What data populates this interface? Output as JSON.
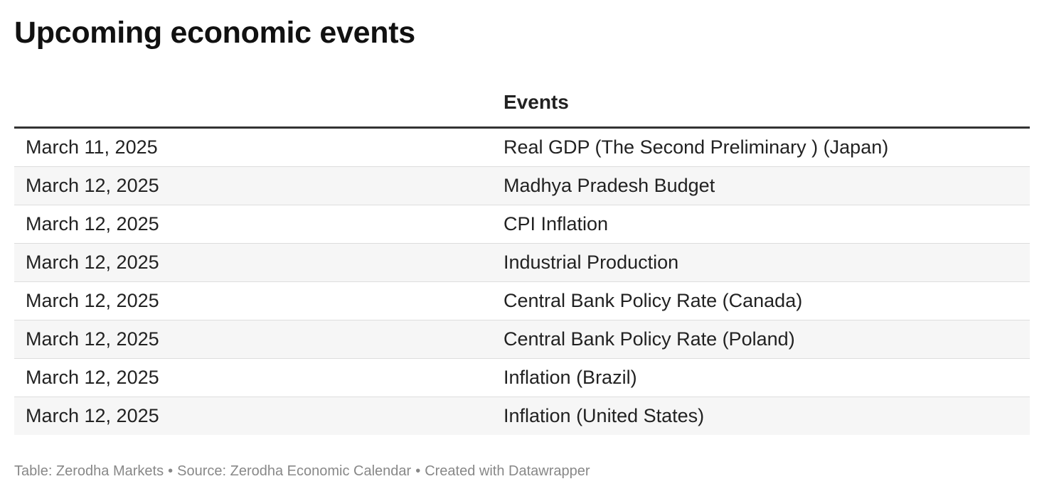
{
  "title": "Upcoming economic events",
  "chart_data": {
    "type": "table",
    "title": "Upcoming economic events",
    "columns": [
      "",
      "Events"
    ],
    "rows": [
      [
        "March 11, 2025",
        "Real GDP (The Second Preliminary ) (Japan)"
      ],
      [
        "March 12, 2025",
        "Madhya Pradesh Budget"
      ],
      [
        "March 12, 2025",
        "CPI Inflation"
      ],
      [
        "March 12, 2025",
        "Industrial Production"
      ],
      [
        "March 12, 2025",
        "Central Bank Policy Rate (Canada)"
      ],
      [
        "March 12, 2025",
        "Central Bank Policy Rate (Poland)"
      ],
      [
        "March 12, 2025",
        "Inflation (Brazil)"
      ],
      [
        "March 12, 2025",
        "Inflation (United States)"
      ]
    ]
  },
  "footer": {
    "table_credit": "Table: Zerodha Markets",
    "separator": "•",
    "source": "Source: Zerodha Economic Calendar",
    "created_with": "Created with Datawrapper"
  }
}
